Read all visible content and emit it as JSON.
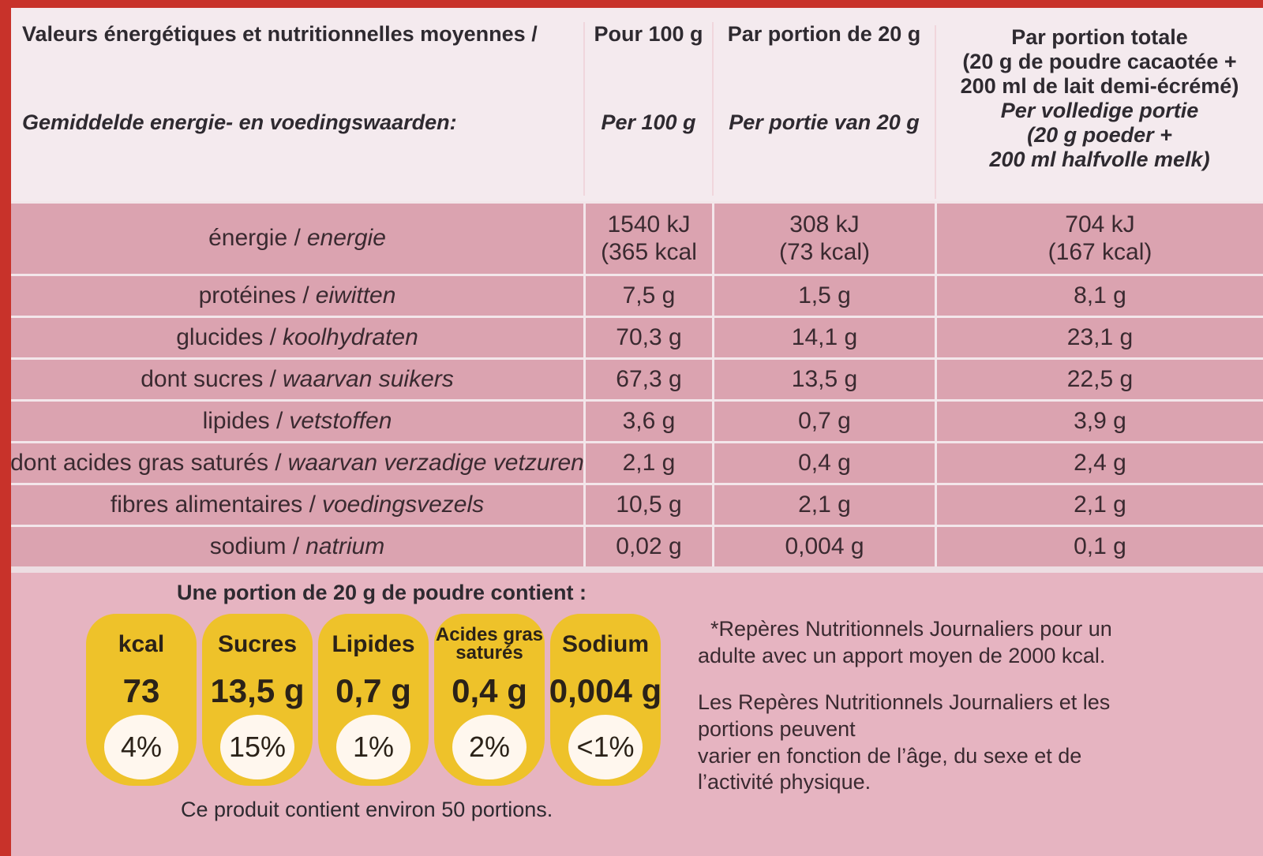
{
  "table": {
    "header": {
      "label_fr": "Valeurs énergétiques et nutritionnelles moyennes /",
      "label_nl": "Gemiddelde energie- en voedingswaarden:",
      "columns": [
        {
          "fr": [
            "Pour 100 g"
          ],
          "nl": [
            "Per 100 g"
          ]
        },
        {
          "fr": [
            "Par portion de 20 g"
          ],
          "nl": [
            "Per portie van 20 g"
          ]
        },
        {
          "fr": [
            "Par portion totale",
            "(20 g de poudre cacaotée +",
            "200 ml de lait demi-écrémé)"
          ],
          "nl": [
            "Per volledige portie",
            "(20 g poeder +",
            "200 ml halfvolle melk)"
          ]
        }
      ]
    },
    "rows": [
      {
        "fr": "énergie /",
        "nl": "energie",
        "cells": [
          [
            "1540 kJ",
            "(365 kcal"
          ],
          [
            "308 kJ",
            "(73 kcal)"
          ],
          [
            "704 kJ",
            "(167 kcal)"
          ]
        ]
      },
      {
        "fr": "protéines /",
        "nl": "eiwitten",
        "cells": [
          [
            "7,5 g"
          ],
          [
            "1,5 g"
          ],
          [
            "8,1 g"
          ]
        ]
      },
      {
        "fr": "glucides /",
        "nl": "koolhydraten",
        "cells": [
          [
            "70,3 g"
          ],
          [
            "14,1 g"
          ],
          [
            "23,1 g"
          ]
        ]
      },
      {
        "fr": "dont sucres /",
        "nl": "waarvan suikers",
        "cells": [
          [
            "67,3 g"
          ],
          [
            "13,5 g"
          ],
          [
            "22,5 g"
          ]
        ]
      },
      {
        "fr": "lipides /",
        "nl": "vetstoffen",
        "cells": [
          [
            "3,6 g"
          ],
          [
            "0,7 g"
          ],
          [
            "3,9 g"
          ]
        ]
      },
      {
        "fr": "dont acides gras saturés /",
        "nl": "waarvan verzadige vetzuren",
        "cells": [
          [
            "2,1 g"
          ],
          [
            "0,4 g"
          ],
          [
            "2,4 g"
          ]
        ]
      },
      {
        "fr": "fibres alimentaires /",
        "nl": "voedingsvezels",
        "cells": [
          [
            "10,5 g"
          ],
          [
            "2,1 g"
          ],
          [
            "2,1 g"
          ]
        ]
      },
      {
        "fr": "sodium /",
        "nl": "natrium",
        "cells": [
          [
            "0,02 g"
          ],
          [
            "0,004 g"
          ],
          [
            "0,1 g"
          ]
        ]
      }
    ]
  },
  "portion": {
    "title": "Une portion de 20 g de poudre contient :",
    "badges": [
      {
        "name": [
          "kcal"
        ],
        "value": "73",
        "percent": "4%"
      },
      {
        "name": [
          "Sucres"
        ],
        "value": "13,5 g",
        "percent": "15%"
      },
      {
        "name": [
          "Lipides"
        ],
        "value": "0,7 g",
        "percent": "1%"
      },
      {
        "name": [
          "Acides gras",
          "saturés"
        ],
        "value": "0,4 g",
        "percent": "2%"
      },
      {
        "name": [
          "Sodium"
        ],
        "value": "0,004 g",
        "percent": "<1%"
      }
    ],
    "note1": [
      "*Repères Nutritionnels Journaliers pour un",
      "adulte avec un apport moyen de 2000 kcal."
    ],
    "note2": [
      "Les Repères Nutritionnels Journaliers et les",
      "portions peuvent",
      "varier en fonction de l’âge, du sexe et de",
      "l’activité physique."
    ],
    "footer": "Ce produit contient environ 50 portions."
  }
}
